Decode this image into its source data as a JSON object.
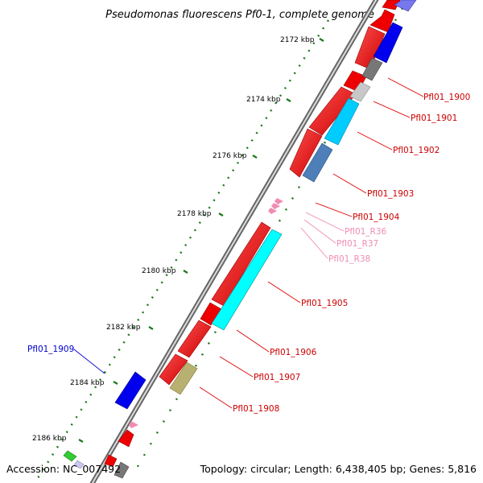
{
  "title": "Pseudomonas fluorescens Pf0-1, complete genome",
  "footer": {
    "accession": "Accession: NC_007492",
    "summary": "Topology: circular; Length: 6,438,405 bp; Genes: 5,816"
  },
  "ticks": [
    "2172 kbp",
    "2174 kbp",
    "2176 kbp",
    "2178 kbp",
    "2180 kbp",
    "2182 kbp",
    "2184 kbp",
    "2186 kbp"
  ],
  "gene_labels": [
    {
      "text": "Pfl01_1900",
      "color": "#cc0000"
    },
    {
      "text": "Pfl01_1901",
      "color": "#cc0000"
    },
    {
      "text": "Pfl01_1902",
      "color": "#cc0000"
    },
    {
      "text": "Pfl01_1903",
      "color": "#cc0000"
    },
    {
      "text": "Pfl01_1904",
      "color": "#cc0000"
    },
    {
      "text": "Pfl01_R36",
      "color": "#f08cb4"
    },
    {
      "text": "Pfl01_R37",
      "color": "#f08cb4"
    },
    {
      "text": "Pfl01_R38",
      "color": "#f08cb4"
    },
    {
      "text": "Pfl01_1905",
      "color": "#cc0000"
    },
    {
      "text": "Pfl01_1906",
      "color": "#cc0000"
    },
    {
      "text": "Pfl01_1907",
      "color": "#cc0000"
    },
    {
      "text": "Pfl01_1908",
      "color": "#cc0000"
    },
    {
      "text": "Pfl01_1909",
      "color": "#0000cc"
    }
  ],
  "colors": {
    "cds": "#ee0000",
    "backbone": "#888888",
    "tick": "#1a7a1a",
    "trna": "#f08cb4",
    "blue": "#0000ee",
    "cyan": "#00d0ff",
    "steel": "#4f7fb8",
    "olive": "#b8b070",
    "grey": "#888888",
    "lightgrey": "#c0c0c0",
    "green": "#33cc33"
  }
}
